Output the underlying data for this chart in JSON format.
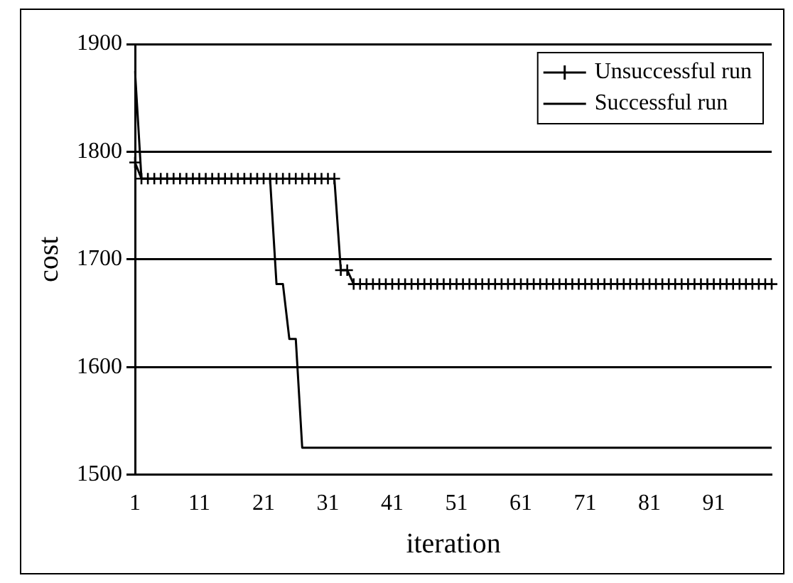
{
  "chart_data": {
    "type": "line",
    "xlabel": "iteration",
    "ylabel": "cost",
    "categories": [
      "1",
      null,
      null,
      null,
      null,
      null,
      null,
      null,
      null,
      null,
      "11",
      null,
      null,
      null,
      null,
      null,
      null,
      null,
      null,
      null,
      "21",
      null,
      null,
      null,
      null,
      null,
      null,
      null,
      null,
      null,
      "31",
      null,
      null,
      null,
      null,
      null,
      null,
      null,
      null,
      null,
      "41",
      null,
      null,
      null,
      null,
      null,
      null,
      null,
      null,
      null,
      "51",
      null,
      null,
      null,
      null,
      null,
      null,
      null,
      null,
      null,
      "61",
      null,
      null,
      null,
      null,
      null,
      null,
      null,
      null,
      null,
      "71",
      null,
      null,
      null,
      null,
      null,
      null,
      null,
      null,
      null,
      "81",
      null,
      null,
      null,
      null,
      null,
      null,
      null,
      null,
      null,
      "91",
      null,
      null,
      null,
      null,
      null,
      null,
      null,
      null,
      null
    ],
    "series": [
      {
        "name": "Unsuccessful run",
        "color": "#000000",
        "marker": "cross",
        "values": [
          1790,
          1775,
          1775,
          1775,
          1775,
          1775,
          1775,
          1775,
          1775,
          1775,
          1775,
          1775,
          1775,
          1775,
          1775,
          1775,
          1775,
          1775,
          1775,
          1775,
          1775,
          1775,
          1775,
          1775,
          1775,
          1775,
          1775,
          1775,
          1775,
          1775,
          1775,
          1775,
          1690,
          1690,
          1677,
          1677,
          1677,
          1677,
          1677,
          1677,
          1677,
          1677,
          1677,
          1677,
          1677,
          1677,
          1677,
          1677,
          1677,
          1677,
          1677,
          1677,
          1677,
          1677,
          1677,
          1677,
          1677,
          1677,
          1677,
          1677,
          1677,
          1677,
          1677,
          1677,
          1677,
          1677,
          1677,
          1677,
          1677,
          1677,
          1677,
          1677,
          1677,
          1677,
          1677,
          1677,
          1677,
          1677,
          1677,
          1677,
          1677,
          1677,
          1677,
          1677,
          1677,
          1677,
          1677,
          1677,
          1677,
          1677,
          1677,
          1677,
          1677,
          1677,
          1677,
          1677,
          1677,
          1677,
          1677,
          1677
        ]
      },
      {
        "name": "Successful run",
        "color": "#000000",
        "marker": "none",
        "values": [
          1875,
          1775,
          1775,
          1775,
          1775,
          1775,
          1775,
          1775,
          1775,
          1775,
          1775,
          1775,
          1775,
          1775,
          1775,
          1775,
          1775,
          1775,
          1775,
          1775,
          1775,
          1775,
          1677,
          1677,
          1626,
          1626,
          1525,
          1525,
          1525,
          1525,
          1525,
          1525,
          1525,
          1525,
          1525,
          1525,
          1525,
          1525,
          1525,
          1525,
          1525,
          1525,
          1525,
          1525,
          1525,
          1525,
          1525,
          1525,
          1525,
          1525,
          1525,
          1525,
          1525,
          1525,
          1525,
          1525,
          1525,
          1525,
          1525,
          1525,
          1525,
          1525,
          1525,
          1525,
          1525,
          1525,
          1525,
          1525,
          1525,
          1525,
          1525,
          1525,
          1525,
          1525,
          1525,
          1525,
          1525,
          1525,
          1525,
          1525,
          1525,
          1525,
          1525,
          1525,
          1525,
          1525,
          1525,
          1525,
          1525,
          1525,
          1525,
          1525,
          1525,
          1525,
          1525,
          1525,
          1525,
          1525,
          1525,
          1525
        ]
      }
    ],
    "ylim": [
      1500,
      1900
    ],
    "yticks": [
      1500,
      1600,
      1700,
      1800,
      1900
    ],
    "grid": "y",
    "legend": "top right"
  }
}
